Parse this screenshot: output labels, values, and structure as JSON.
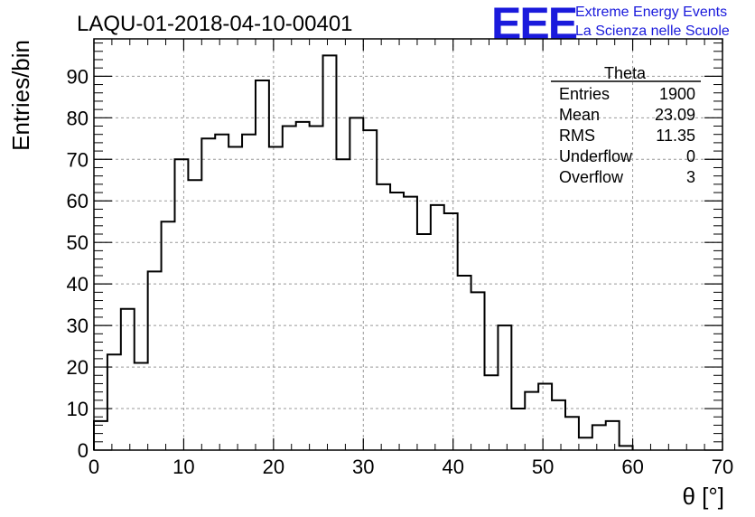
{
  "chart_data": {
    "type": "bar",
    "title": "LAQU-01-2018-04-10-00401",
    "xlabel": "θ [°]",
    "ylabel": "Entries/bin",
    "xlim": [
      0,
      70
    ],
    "ylim": [
      0,
      99
    ],
    "grid": true,
    "bin_width": 1.5,
    "bin_start": 0,
    "values": [
      7,
      23,
      34,
      21,
      43,
      55,
      70,
      65,
      75,
      76,
      73,
      76,
      89,
      73,
      78,
      79,
      78,
      95,
      70,
      80,
      77,
      64,
      62,
      61,
      52,
      59,
      57,
      42,
      38,
      18,
      30,
      10,
      14,
      16,
      12,
      8,
      3,
      6,
      7,
      1
    ],
    "x_ticks": [
      "0",
      "10",
      "20",
      "30",
      "40",
      "50",
      "60",
      "70"
    ],
    "y_ticks": [
      "0",
      "10",
      "20",
      "30",
      "40",
      "50",
      "60",
      "70",
      "80",
      "90"
    ],
    "stats_box": {
      "title": "Theta",
      "rows": [
        {
          "label": "Entries",
          "value": "1900"
        },
        {
          "label": "Mean",
          "value": "23.09"
        },
        {
          "label": "RMS",
          "value": "11.35"
        },
        {
          "label": "Underflow",
          "value": "0"
        },
        {
          "label": "Overflow",
          "value": "3"
        }
      ]
    }
  },
  "logo": {
    "mark": "EEE",
    "line1": "Extreme Energy Events",
    "line2": "La Scienza nelle Scuole",
    "color": "#1a1adc"
  }
}
